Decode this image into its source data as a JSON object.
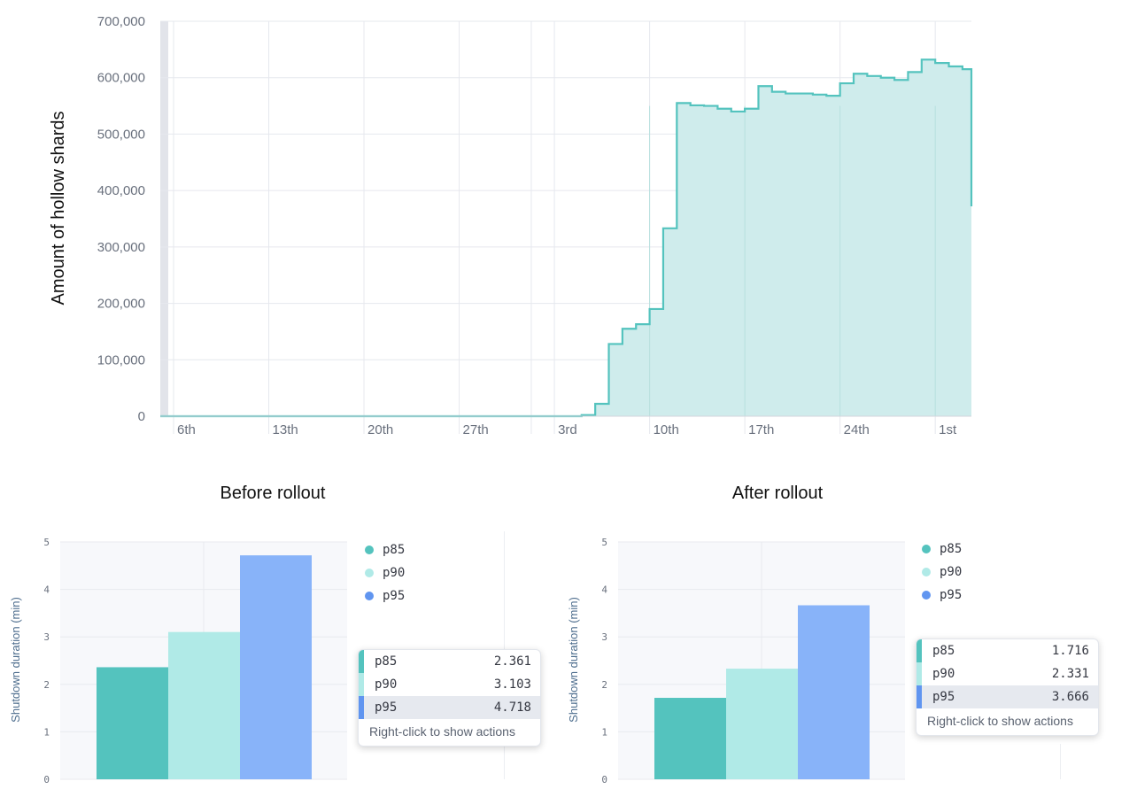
{
  "chart_data": [
    {
      "type": "area",
      "ylabel": "Amount of hollow shards",
      "ylim": [
        0,
        700000
      ],
      "y_ticks": [
        "0",
        "100,000",
        "200,000",
        "300,000",
        "400,000",
        "500,000",
        "600,000",
        "700,000"
      ],
      "x_ticks": [
        "6th",
        "13th",
        "20th",
        "27th",
        "3rd",
        "10th",
        "17th",
        "24th",
        "1st"
      ],
      "step": true,
      "series": [
        {
          "color": "#54c3be",
          "x": [
            0,
            28,
            30,
            31,
            32,
            33,
            34,
            35,
            36,
            37,
            38,
            39,
            40,
            41,
            42,
            43,
            44,
            45,
            46,
            47,
            48,
            49,
            50,
            51,
            52,
            53,
            54,
            55,
            56,
            57,
            58,
            59
          ],
          "values": [
            0,
            0,
            2000,
            22000,
            128000,
            155000,
            163000,
            190000,
            333000,
            555000,
            551000,
            550000,
            545000,
            540000,
            545000,
            585000,
            575000,
            572000,
            572000,
            570000,
            568000,
            590000,
            607000,
            603000,
            600000,
            596000,
            610000,
            632000,
            626000,
            620000,
            615000,
            372000
          ]
        }
      ]
    },
    {
      "type": "bar",
      "title": "Before rollout",
      "ylabel": "Shutdown duration (min)",
      "ylim": [
        0,
        5
      ],
      "y_ticks": [
        "0",
        "1",
        "2",
        "3",
        "4",
        "5"
      ],
      "series": [
        {
          "name": "p85",
          "value": 2.361,
          "color": "#54c3be"
        },
        {
          "name": "p90",
          "value": 3.103,
          "color": "#b0eae7"
        },
        {
          "name": "p95",
          "value": 4.718,
          "color": "#88b3f9"
        }
      ]
    },
    {
      "type": "bar",
      "title": "After rollout",
      "ylabel": "Shutdown duration (min)",
      "ylim": [
        0,
        5
      ],
      "y_ticks": [
        "0",
        "1",
        "2",
        "3",
        "4",
        "5"
      ],
      "series": [
        {
          "name": "p85",
          "value": 1.716,
          "color": "#54c3be"
        },
        {
          "name": "p90",
          "value": 2.331,
          "color": "#b0eae7"
        },
        {
          "name": "p95",
          "value": 3.666,
          "color": "#88b3f9"
        }
      ]
    }
  ],
  "legend_dot_colors": [
    "#54c3be",
    "#b0eae7",
    "#6095f0"
  ],
  "tooltip": {
    "footer": "Right-click to show actions",
    "highlight_row": "p95",
    "before_values": [
      "2.361",
      "3.103",
      "4.718"
    ],
    "after_values": [
      "1.716",
      "2.331",
      "3.666"
    ]
  }
}
